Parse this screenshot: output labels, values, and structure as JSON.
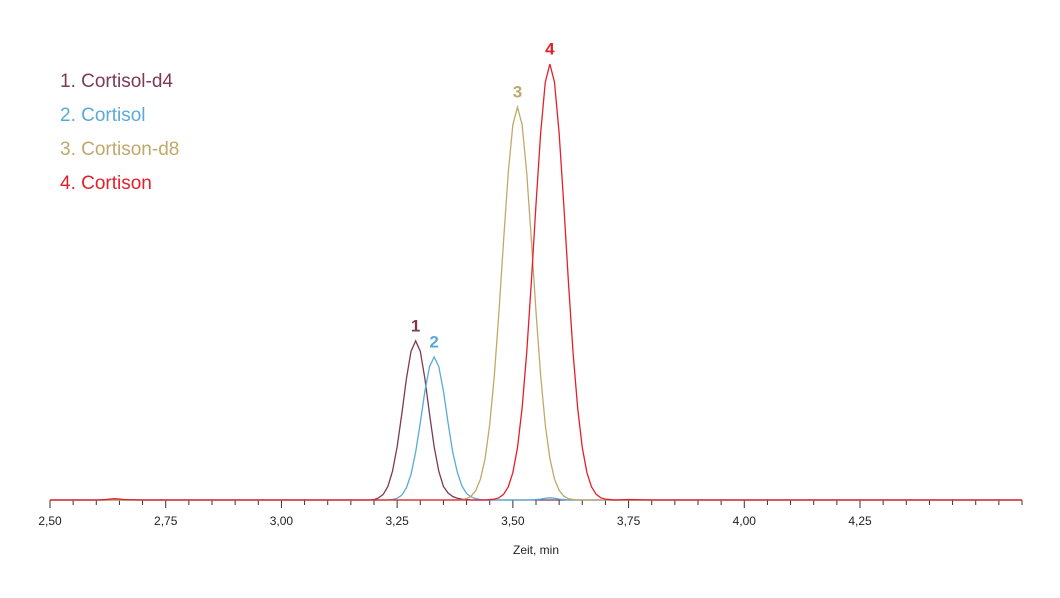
{
  "chart_data": {
    "type": "line",
    "x_label": "Zeit, min",
    "x": [
      2.5,
      2.55,
      2.6,
      2.62,
      2.64,
      2.66,
      2.7,
      2.8,
      2.9,
      3.0,
      3.1,
      3.15,
      3.18,
      3.19,
      3.2,
      3.21,
      3.22,
      3.23,
      3.24,
      3.25,
      3.26,
      3.27,
      3.28,
      3.29,
      3.3,
      3.31,
      3.32,
      3.33,
      3.34,
      3.35,
      3.36,
      3.37,
      3.38,
      3.39,
      3.4,
      3.41,
      3.42,
      3.43,
      3.44,
      3.45,
      3.46,
      3.47,
      3.48,
      3.49,
      3.5,
      3.51,
      3.52,
      3.53,
      3.54,
      3.55,
      3.56,
      3.57,
      3.58,
      3.59,
      3.6,
      3.61,
      3.62,
      3.63,
      3.64,
      3.65,
      3.66,
      3.67,
      3.68,
      3.69,
      3.7,
      3.71,
      3.72,
      3.75,
      3.8,
      3.9,
      4.0,
      4.2,
      4.4,
      4.6
    ],
    "series": [
      {
        "name": "1. Cortisol-d4",
        "peak_label": "1",
        "color": "#7b3a55",
        "values": [
          0,
          0,
          0,
          0,
          0,
          0,
          0,
          0,
          0,
          0,
          0,
          0,
          0,
          0,
          0.1,
          0.5,
          1.3,
          3.1,
          6.6,
          12.2,
          19.7,
          27.8,
          34.1,
          36.5,
          34.1,
          27.8,
          19.7,
          12.2,
          6.6,
          3.1,
          1.6,
          0.8,
          0.4,
          0.2,
          0.1,
          0,
          0,
          0,
          0,
          0,
          0,
          0,
          0,
          0,
          0,
          0,
          0,
          0,
          0,
          0,
          0,
          0,
          0,
          0,
          0,
          0,
          0,
          0,
          0,
          0,
          0,
          0,
          0,
          0,
          0,
          0,
          0,
          0,
          0,
          0,
          0,
          0,
          0,
          0
        ]
      },
      {
        "name": "2. Cortisol",
        "peak_label": "2",
        "color": "#5aaad6",
        "values": [
          0,
          0,
          0,
          0,
          0,
          0,
          0,
          0,
          0,
          0,
          0,
          0,
          0,
          0,
          0,
          0,
          0,
          0,
          0.1,
          0.4,
          1.1,
          2.8,
          5.9,
          11.0,
          17.7,
          25.0,
          30.6,
          32.8,
          30.6,
          25.0,
          17.7,
          11.0,
          6.4,
          3.2,
          1.5,
          0.7,
          0.3,
          0.1,
          0,
          0,
          0,
          0,
          0,
          0,
          0,
          0,
          0,
          0,
          0,
          0.1,
          0.2,
          0.4,
          0.5,
          0.4,
          0.2,
          0.1,
          0,
          0,
          0,
          0,
          0,
          0,
          0,
          0,
          0,
          0,
          0,
          0,
          0,
          0,
          0,
          0,
          0,
          0
        ]
      },
      {
        "name": "3. Cortison-d8",
        "peak_label": "3",
        "color": "#bfa96a",
        "values": [
          0,
          0,
          0,
          0,
          0,
          0,
          0,
          0,
          0,
          0,
          0,
          0,
          0,
          0,
          0,
          0,
          0,
          0,
          0,
          0,
          0,
          0,
          0,
          0,
          0,
          0,
          0,
          0,
          0,
          0,
          0,
          0,
          0,
          0.1,
          0.3,
          0.9,
          2.2,
          4.8,
          9.5,
          17.3,
          28.6,
          43.2,
          59.6,
          75.0,
          86.1,
          90.1,
          86.1,
          75.0,
          59.6,
          43.2,
          28.6,
          17.3,
          9.5,
          4.8,
          2.2,
          0.9,
          0.3,
          0.1,
          0,
          0,
          0,
          0,
          0,
          0,
          0,
          0,
          0,
          0,
          0,
          0,
          0,
          0,
          0,
          0
        ]
      },
      {
        "name": "4. Cortison",
        "peak_label": "4",
        "color": "#e3202a",
        "values": [
          0,
          0,
          0,
          0.1,
          0.3,
          0.1,
          0,
          0,
          0,
          0,
          0,
          0,
          0,
          0,
          0,
          0,
          0,
          0,
          0,
          0,
          0,
          0,
          0,
          0,
          0,
          0,
          0,
          0,
          0,
          0,
          0,
          0,
          0,
          0,
          0,
          0,
          0,
          0,
          0,
          0.1,
          0.2,
          0.5,
          1.3,
          3.0,
          6.3,
          12.0,
          21.1,
          33.9,
          50.1,
          67.8,
          84.1,
          95.8,
          100,
          95.8,
          84.1,
          67.8,
          50.1,
          33.9,
          21.1,
          12.0,
          6.3,
          3.0,
          1.3,
          0.5,
          0.2,
          0.1,
          0,
          0.1,
          0,
          0,
          0,
          0,
          0,
          0
        ]
      }
    ],
    "xlim": [
      2.5,
      4.6
    ],
    "ylim": [
      0,
      100
    ],
    "xticks": [
      {
        "value": 2.5,
        "label": "2,50"
      },
      {
        "value": 2.75,
        "label": "2,75"
      },
      {
        "value": 3.0,
        "label": "3,00"
      },
      {
        "value": 3.25,
        "label": "3,25"
      },
      {
        "value": 3.5,
        "label": "3,50"
      },
      {
        "value": 3.75,
        "label": "3,75"
      },
      {
        "value": 4.0,
        "label": "4,00"
      },
      {
        "value": 4.25,
        "label": "4,25"
      }
    ],
    "xticks_minor": [
      2.55,
      2.6,
      2.65,
      2.7,
      2.8,
      2.85,
      2.9,
      2.95,
      3.05,
      3.1,
      3.15,
      3.2,
      3.3,
      3.35,
      3.4,
      3.45,
      3.55,
      3.6,
      3.65,
      3.7,
      3.8,
      3.85,
      3.9,
      3.95,
      4.05,
      4.1,
      4.15,
      4.2,
      4.3,
      4.35,
      4.4,
      4.45,
      4.5,
      4.55,
      4.6
    ],
    "legend": "top-left",
    "grid": false
  }
}
